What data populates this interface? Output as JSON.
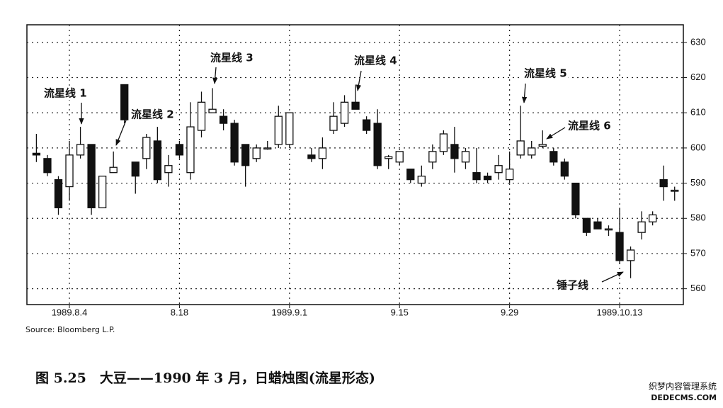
{
  "chart_data": {
    "type": "candlestick",
    "annotations": [
      "流星线 1",
      "流星线 2",
      "流星线 3",
      "流星线 4",
      "流星线 5",
      "流星线 6",
      "锤子线"
    ],
    "source": "Source: Bloomberg L.P.",
    "caption": "图 5.25　大豆——1990 年 3 月，日蜡烛图(流星形态)",
    "watermark": [
      "织梦内容管理系统",
      "DEDECMS.COM"
    ],
    "categories": [
      null,
      null,
      null,
      "1989.8.4",
      null,
      null,
      null,
      null,
      null,
      null,
      null,
      null,
      null,
      "8.18",
      null,
      null,
      null,
      null,
      null,
      null,
      null,
      null,
      null,
      "1989.9.1",
      null,
      null,
      null,
      null,
      null,
      null,
      null,
      null,
      null,
      "9.15",
      null,
      null,
      null,
      null,
      null,
      null,
      null,
      null,
      null,
      "9.29",
      null,
      null,
      null,
      null,
      null,
      null,
      null,
      null,
      null,
      "1989.10.13",
      null,
      null,
      null,
      null,
      null
    ],
    "open": [
      598.5,
      597,
      591,
      589,
      598,
      601,
      583,
      593,
      618,
      596,
      597,
      602,
      593,
      601,
      593,
      605,
      610,
      609,
      607,
      601,
      597,
      600,
      601,
      601,
      null,
      598,
      597,
      605,
      607,
      613,
      608,
      607,
      597,
      596,
      594,
      590,
      596,
      599,
      601,
      596,
      593,
      592,
      593,
      591,
      598,
      598,
      600.5,
      599,
      596,
      590,
      580,
      579,
      577,
      576,
      568,
      576,
      579,
      591,
      588
    ],
    "high": [
      604,
      598,
      592,
      602,
      606,
      601,
      592,
      599,
      618,
      596,
      604,
      606,
      598,
      602,
      613,
      616,
      617,
      611,
      608,
      601,
      601,
      602,
      612,
      610,
      null,
      600,
      603,
      613,
      615,
      618,
      609,
      611,
      598,
      599,
      594,
      595,
      601,
      605,
      606,
      600,
      600,
      593,
      598,
      599,
      612,
      602,
      605,
      600,
      597,
      590,
      580,
      580,
      578,
      583,
      572,
      582,
      582,
      595,
      589
    ],
    "low": [
      596,
      592,
      581,
      585,
      597,
      581,
      583,
      593,
      607,
      587,
      594,
      590,
      589,
      597,
      591,
      603,
      610,
      605,
      595,
      589,
      596,
      599.5,
      600,
      600,
      null,
      596,
      594,
      604,
      606,
      611,
      604,
      594,
      594,
      595,
      590,
      589,
      594,
      598,
      593,
      594,
      590,
      590,
      591,
      590,
      597,
      597,
      600,
      595,
      591,
      580,
      575,
      577,
      575,
      567,
      563,
      574,
      578,
      585,
      585
    ],
    "close": [
      598,
      593,
      583,
      598,
      601,
      583,
      592,
      594.5,
      608,
      592,
      603,
      591,
      595,
      598,
      606,
      613,
      611,
      607,
      596,
      595,
      600,
      600,
      609,
      610,
      null,
      597,
      600,
      609,
      613,
      611,
      605,
      595,
      597.5,
      599,
      591,
      592,
      599,
      604,
      597,
      599,
      591,
      591,
      595,
      594,
      602,
      600,
      601,
      596,
      592,
      581,
      576,
      577,
      577,
      568,
      571,
      579,
      581,
      589,
      588
    ],
    "up_color": "#ffffff",
    "down_color": "#111111",
    "ylim": [
      555.5,
      635
    ],
    "yticks": [
      560,
      570,
      580,
      590,
      600,
      610,
      620,
      630
    ],
    "grid": true
  }
}
